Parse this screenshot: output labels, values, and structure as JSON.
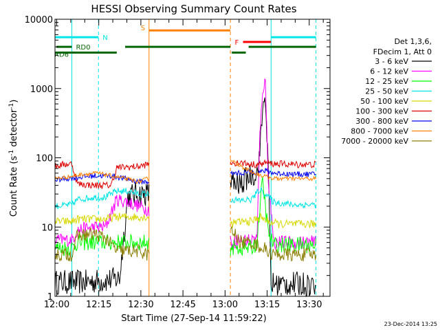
{
  "chart_data": {
    "type": "line",
    "title": "HESSI Observing Summary Count Rates",
    "xlabel": "Start Time (27-Sep-14 11:59:22)",
    "ylabel_main": "Count Rate (s",
    "ylabel_sup1": "-1",
    "ylabel_mid": " detector",
    "ylabel_sup2": "-1",
    "ylabel_end": ")",
    "yscale": "log",
    "ylim": [
      1,
      10000
    ],
    "xlim_minutes": [
      0,
      98
    ],
    "x_tick_labels": [
      "12:00",
      "12:15",
      "12:30",
      "12:45",
      "13:00",
      "13:15",
      "13:30"
    ],
    "x_tick_minutes": [
      0.6,
      15.6,
      30.6,
      45.6,
      60.6,
      75.6,
      90.6
    ],
    "y_tick_labels": [
      "1",
      "10",
      "100",
      "1000",
      "10000"
    ],
    "y_tick_values": [
      1,
      10,
      100,
      1000,
      10000
    ],
    "legend_header": [
      "Det 1,3,6,",
      "FDecim 1, Att 0"
    ],
    "series": [
      {
        "name": "3 - 6 keV",
        "color": "#000000"
      },
      {
        "name": "6 - 12 keV",
        "color": "#ff00ff"
      },
      {
        "name": "12 - 25 keV",
        "color": "#00ff00"
      },
      {
        "name": "25 - 50 keV",
        "color": "#00e5e5"
      },
      {
        "name": "50 - 100 keV",
        "color": "#d8d800"
      },
      {
        "name": "100 - 300 keV",
        "color": "#dd0000"
      },
      {
        "name": "300 - 800 keV",
        "color": "#0000ee"
      },
      {
        "name": "800 - 7000 keV",
        "color": "#ff8000"
      },
      {
        "name": "7000 - 20000 keV",
        "color": "#8b7d00"
      }
    ],
    "segments": [
      {
        "t0": 0,
        "t1": 33.5,
        "points": {
          "3 - 6 keV": [
            [
              0,
              1.6
            ],
            [
              10,
              1.6
            ],
            [
              18,
              1.7
            ],
            [
              23,
              1.8
            ],
            [
              26,
              28
            ],
            [
              29,
              30
            ],
            [
              33,
              30
            ]
          ],
          "6 - 12 keV": [
            [
              0,
              6.5
            ],
            [
              6,
              6.5
            ],
            [
              8,
              9
            ],
            [
              14,
              10
            ],
            [
              18,
              10
            ],
            [
              22,
              25
            ],
            [
              26,
              23
            ],
            [
              30,
              20
            ],
            [
              33,
              18
            ]
          ],
          "12 - 25 keV": [
            [
              0,
              5
            ],
            [
              6,
              5
            ],
            [
              8,
              6
            ],
            [
              14,
              6
            ],
            [
              22,
              6
            ],
            [
              33,
              6
            ]
          ],
          "25 - 50 keV": [
            [
              0,
              20
            ],
            [
              6,
              21
            ],
            [
              8,
              25
            ],
            [
              14,
              27
            ],
            [
              18,
              27
            ],
            [
              22,
              33
            ],
            [
              26,
              33
            ],
            [
              30,
              30
            ],
            [
              33,
              30
            ]
          ],
          "50 - 100 keV": [
            [
              0,
              12
            ],
            [
              6,
              12
            ],
            [
              8,
              13
            ],
            [
              14,
              13
            ],
            [
              18,
              13
            ],
            [
              22,
              14
            ],
            [
              30,
              14
            ],
            [
              33,
              14
            ]
          ],
          "100 - 300 keV": [
            [
              0,
              75
            ],
            [
              3,
              80
            ],
            [
              6,
              82
            ],
            [
              8,
              42
            ],
            [
              14,
              40
            ],
            [
              20,
              40
            ],
            [
              22,
              72
            ],
            [
              30,
              75
            ],
            [
              33,
              80
            ]
          ],
          "300 - 800 keV": [
            [
              0,
              48
            ],
            [
              8,
              52
            ],
            [
              14,
              55
            ],
            [
              20,
              55
            ],
            [
              25,
              50
            ],
            [
              30,
              45
            ],
            [
              33,
              45
            ]
          ],
          "800 - 7000 keV": [
            [
              0,
              50
            ],
            [
              6,
              54
            ],
            [
              10,
              58
            ],
            [
              15,
              60
            ],
            [
              20,
              55
            ],
            [
              25,
              50
            ],
            [
              30,
              45
            ],
            [
              33,
              50
            ]
          ],
          "7000 - 20000 keV": [
            [
              0,
              4
            ],
            [
              6,
              4
            ],
            [
              8,
              7.5
            ],
            [
              14,
              8
            ],
            [
              18,
              7
            ],
            [
              22,
              4.5
            ],
            [
              30,
              4.5
            ],
            [
              33,
              4
            ]
          ]
        }
      },
      {
        "t0": 62.5,
        "t1": 93,
        "points": {
          "3 - 6 keV": [
            [
              62.5,
              45
            ],
            [
              66,
              40
            ],
            [
              69,
              55
            ],
            [
              72,
              60
            ],
            [
              73,
              120
            ],
            [
              74,
              500
            ],
            [
              75,
              800
            ],
            [
              76,
              60
            ],
            [
              77,
              1.5
            ],
            [
              93,
              1.5
            ]
          ],
          "6 - 12 keV": [
            [
              62.5,
              6
            ],
            [
              66,
              6.5
            ],
            [
              70,
              6.5
            ],
            [
              72,
              7
            ],
            [
              73,
              200
            ],
            [
              74,
              1000
            ],
            [
              75,
              1200
            ],
            [
              76,
              50
            ],
            [
              78,
              6
            ],
            [
              93,
              6
            ]
          ],
          "12 - 25 keV": [
            [
              62.5,
              5
            ],
            [
              70,
              5
            ],
            [
              72,
              6
            ],
            [
              73,
              20
            ],
            [
              74,
              45
            ],
            [
              75,
              20
            ],
            [
              76,
              8
            ],
            [
              78,
              5.5
            ],
            [
              93,
              5.5
            ]
          ],
          "25 - 50 keV": [
            [
              62.5,
              25
            ],
            [
              66,
              24
            ],
            [
              70,
              25
            ],
            [
              73,
              35
            ],
            [
              75,
              30
            ],
            [
              78,
              23
            ],
            [
              85,
              21
            ],
            [
              93,
              21
            ]
          ],
          "50 - 100 keV": [
            [
              62.5,
              11
            ],
            [
              66,
              12
            ],
            [
              70,
              12
            ],
            [
              73,
              14
            ],
            [
              76,
              12
            ],
            [
              80,
              11
            ],
            [
              93,
              11
            ]
          ],
          "100 - 300 keV": [
            [
              62.5,
              85
            ],
            [
              66,
              85
            ],
            [
              70,
              80
            ],
            [
              73,
              80
            ],
            [
              75,
              85
            ],
            [
              78,
              82
            ],
            [
              85,
              80
            ],
            [
              93,
              80
            ]
          ],
          "300 - 800 keV": [
            [
              62.5,
              60
            ],
            [
              66,
              60
            ],
            [
              70,
              62
            ],
            [
              73,
              62
            ],
            [
              75,
              65
            ],
            [
              78,
              60
            ],
            [
              85,
              58
            ],
            [
              93,
              58
            ]
          ],
          "800 - 7000 keV": [
            [
              62.5,
              95
            ],
            [
              65,
              80
            ],
            [
              68,
              70
            ],
            [
              71,
              60
            ],
            [
              74,
              55
            ],
            [
              78,
              50
            ],
            [
              85,
              50
            ],
            [
              93,
              50
            ]
          ],
          "7000 - 20000 keV": [
            [
              62.5,
              9
            ],
            [
              64,
              8
            ],
            [
              66,
              6
            ],
            [
              70,
              6
            ],
            [
              74,
              5
            ],
            [
              78,
              4
            ],
            [
              85,
              4
            ],
            [
              93,
              4
            ]
          ]
        }
      }
    ],
    "flags": [
      {
        "label": "N",
        "color": "#00e5e5",
        "start": 0,
        "end": 15.5,
        "level": 5500
      },
      {
        "label": "",
        "color": "#00e5e5",
        "start": 77,
        "end": 93,
        "level": 5500
      },
      {
        "label": "S",
        "color": "#ff8000",
        "start": 33.5,
        "end": 62.5,
        "level": 6900
      },
      {
        "label": "F",
        "color": "#ff0000",
        "start": 67,
        "end": 77,
        "level": 4700
      },
      {
        "label": "RD0",
        "color": "#006600",
        "start": 0.5,
        "end": 6,
        "level": 4000
      },
      {
        "label": "",
        "color": "#006600",
        "start": 6,
        "end": 22,
        "level": 3300
      },
      {
        "label": "RD6",
        "color": "#006600",
        "start": 0,
        "end": 20,
        "level": 3300
      },
      {
        "label": "",
        "color": "#006600",
        "start": 25,
        "end": 62.5,
        "level": 4000
      },
      {
        "label": "",
        "color": "#006600",
        "start": 63,
        "end": 68,
        "level": 3300
      },
      {
        "label": "",
        "color": "#006600",
        "start": 69,
        "end": 93,
        "level": 4000
      }
    ],
    "vlines": [
      {
        "t": 0,
        "color": "#00e5e5",
        "style": "solid"
      },
      {
        "t": 15.5,
        "color": "#00e5e5",
        "style": "dashed"
      },
      {
        "t": 33.5,
        "color": "#ff8000",
        "style": "solid"
      },
      {
        "t": 62.5,
        "color": "#ff8000",
        "style": "dashed"
      },
      {
        "t": 77,
        "color": "#00e5e5",
        "style": "solid"
      },
      {
        "t": 93,
        "color": "#00e5e5",
        "style": "dashed"
      },
      {
        "t": 6,
        "color": "#00e5e5",
        "style": "solid"
      }
    ]
  },
  "footer": {
    "date_stamp": "23-Dec-2014 13:25"
  }
}
